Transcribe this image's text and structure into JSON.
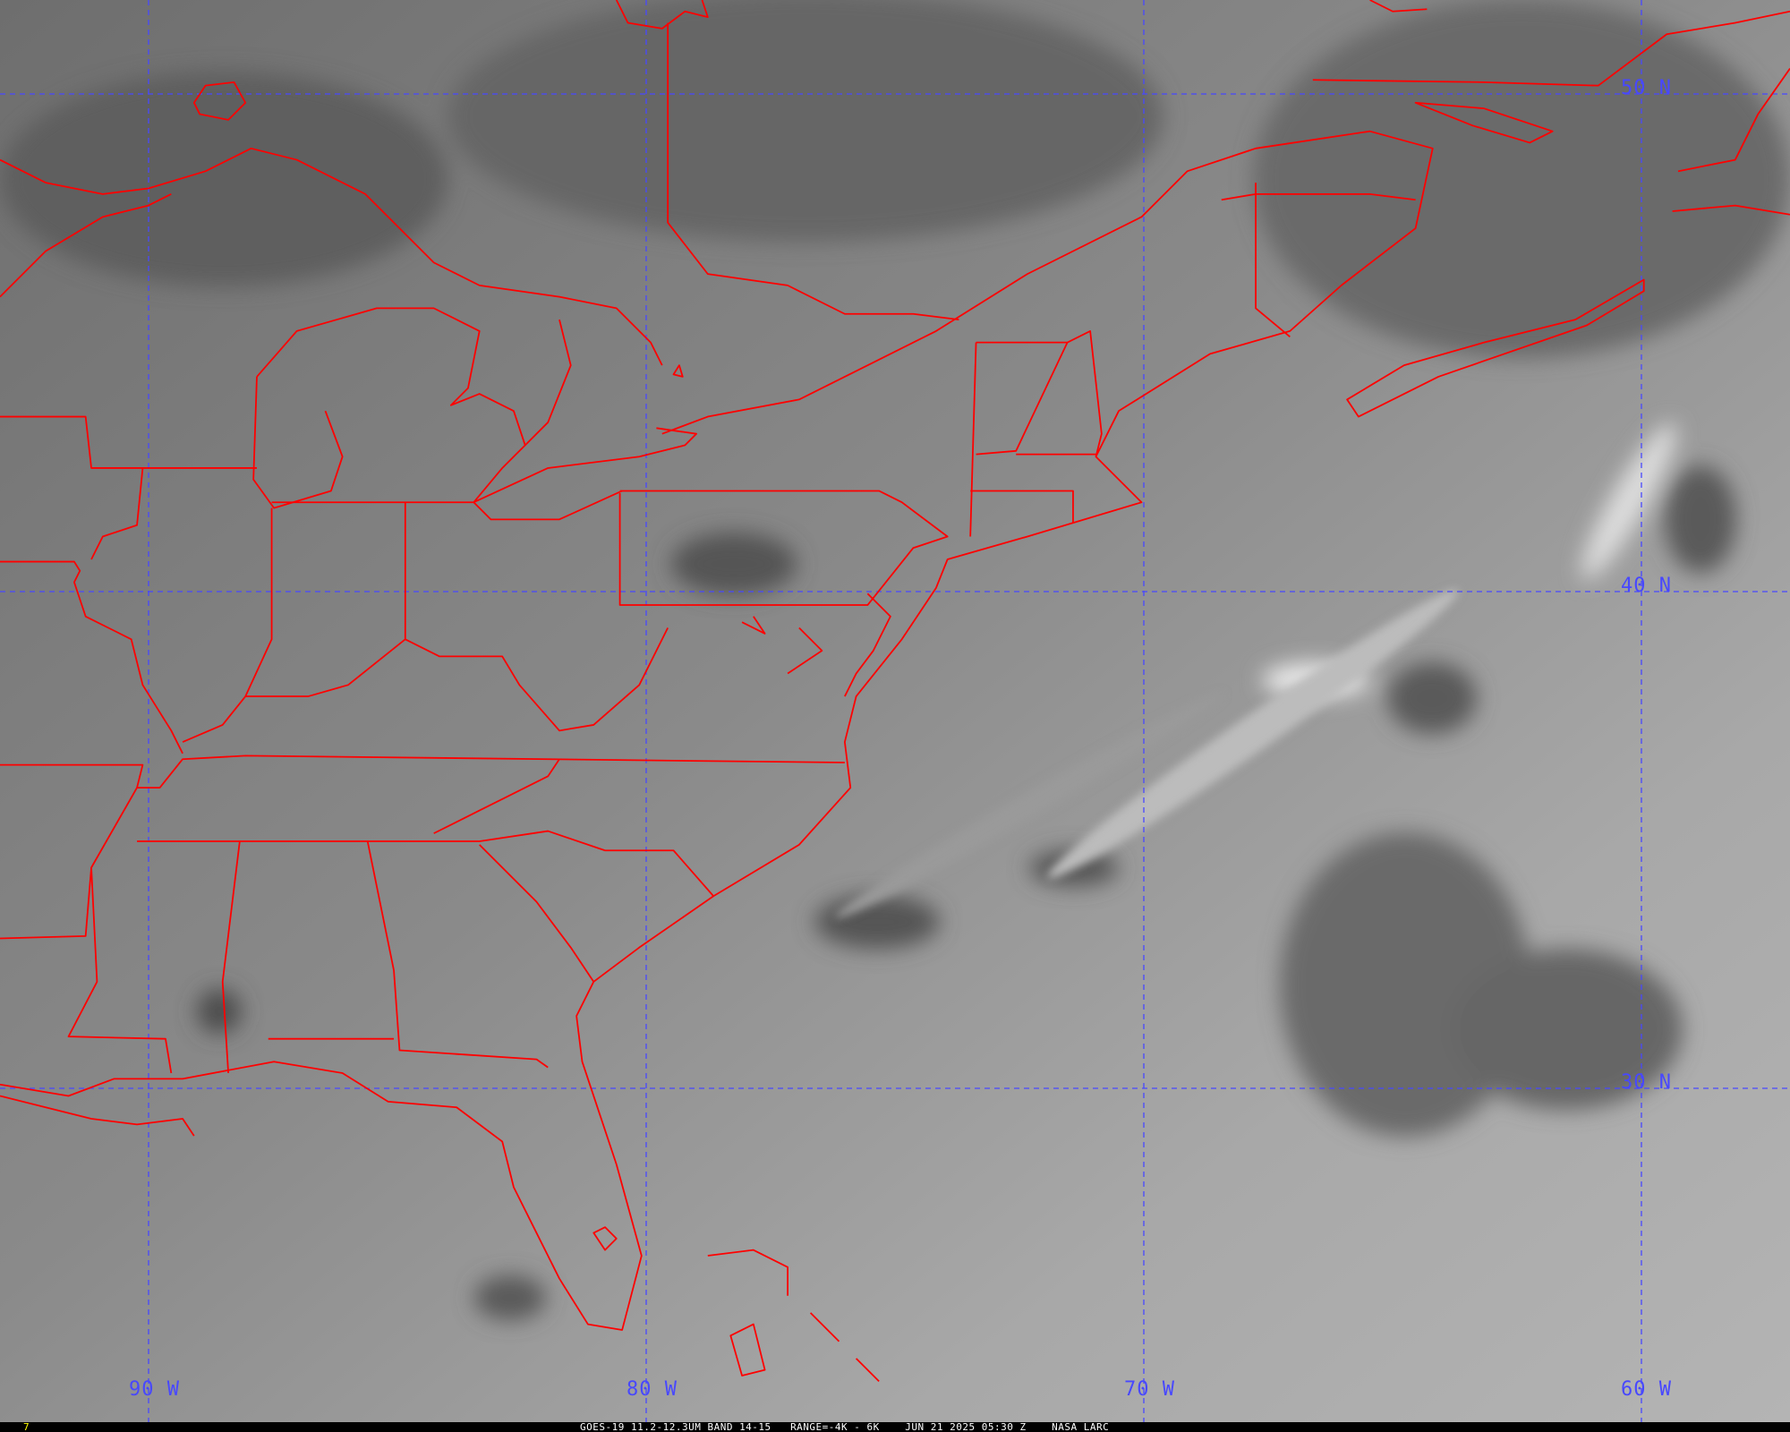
{
  "map": {
    "lat_labels": [
      "50 N",
      "40 N",
      "30 N"
    ],
    "lon_labels": [
      "90 W",
      "80 W",
      "70 W",
      "60 W"
    ],
    "border_color": "#ff0000",
    "grid_color": "#4848ff"
  },
  "caption": {
    "frame": "7",
    "product": "GOES-19 11.2-12.3UM BAND 14-15",
    "range": "RANGE=-4K - 6K",
    "datetime": "JUN 21 2025 05:30 Z",
    "credit": "NASA LARC"
  }
}
